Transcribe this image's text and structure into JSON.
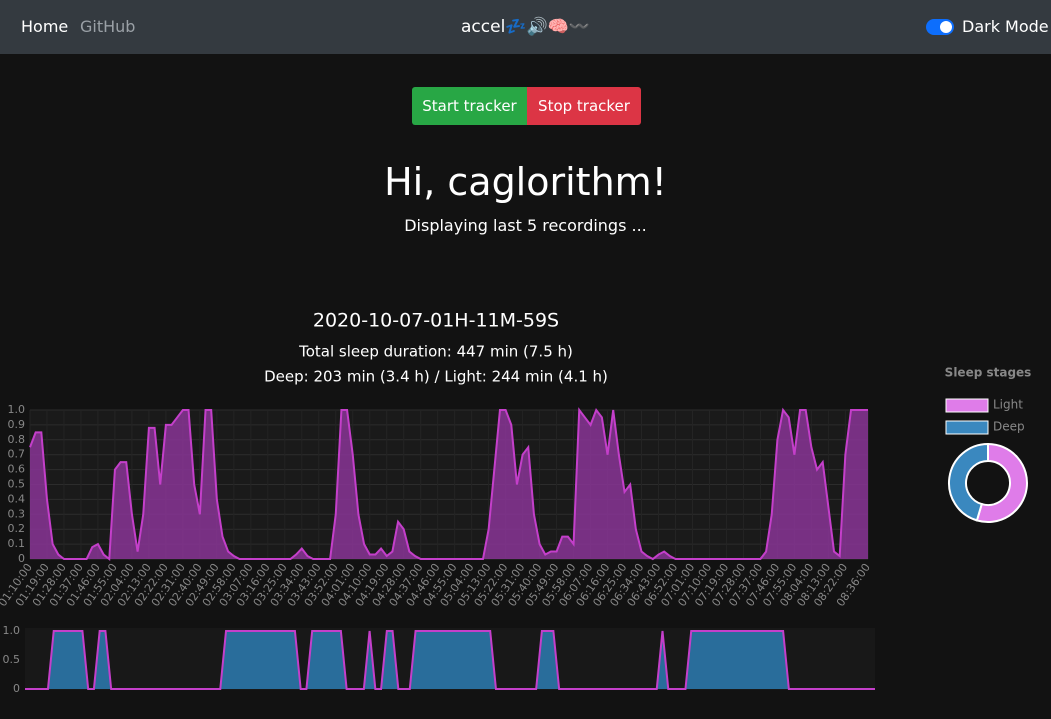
{
  "nav": {
    "links": [
      "Home",
      "GitHub"
    ],
    "brand": "accel💤🔊🧠〰️",
    "toggle": "Dark Mode"
  },
  "buttons": [
    "Start tracker",
    "Stop tracker"
  ],
  "greeting": "Hi, caglorithm!",
  "subtitle": "Displaying last 5 recordings ...",
  "chart_data": [
    {
      "type": "area",
      "title": "2020-10-07-01H-11M-59S",
      "subtitle": [
        "Total sleep duration: 447 min (7.5 h)",
        "Deep: 203 min (3.4 h) / Light: 244 min (4.1 h)"
      ],
      "categories": [
        "01:10:00",
        null,
        null,
        "01:19:00",
        null,
        null,
        "01:28:00",
        null,
        null,
        "01:37:00",
        null,
        null,
        "01:46:00",
        null,
        null,
        "01:55:00",
        null,
        null,
        "02:04:00",
        null,
        null,
        "02:13:00",
        null,
        null,
        "02:22:00",
        null,
        null,
        "02:31:00",
        null,
        null,
        "02:40:00",
        null,
        null,
        "02:49:00",
        null,
        null,
        "02:58:00",
        null,
        null,
        "03:07:00",
        null,
        null,
        "03:16:00",
        null,
        null,
        "03:25:00",
        null,
        null,
        "03:34:00",
        null,
        null,
        "03:43:00",
        null,
        null,
        "03:52:00",
        null,
        null,
        "04:01:00",
        null,
        null,
        "04:10:00",
        null,
        null,
        "04:19:00",
        null,
        null,
        "04:28:00",
        null,
        null,
        "04:37:00",
        null,
        null,
        "04:46:00",
        null,
        null,
        "04:55:00",
        null,
        null,
        "05:04:00",
        null,
        null,
        "05:13:00",
        null,
        null,
        "05:22:00",
        null,
        null,
        "05:31:00",
        null,
        null,
        "05:40:00",
        null,
        null,
        "05:49:00",
        null,
        null,
        "05:58:00",
        null,
        null,
        "06:07:00",
        null,
        null,
        "06:16:00",
        null,
        null,
        "06:25:00",
        null,
        null,
        "06:34:00",
        null,
        null,
        "06:43:00",
        null,
        null,
        "06:52:00",
        null,
        null,
        "07:01:00",
        null,
        null,
        "07:10:00",
        null,
        null,
        "07:19:00",
        null,
        null,
        "07:28:00",
        null,
        null,
        "07:37:00",
        null,
        null,
        "07:46:00",
        null,
        null,
        "07:55:00",
        null,
        null,
        "08:04:00",
        null,
        null,
        "08:13:00",
        null,
        null,
        "08:22:00",
        null,
        null,
        null,
        "08:36:00"
      ],
      "values": [
        0.75,
        0.85,
        0.85,
        0.4,
        0.1,
        0.03,
        0,
        0,
        0,
        0,
        0,
        0.08,
        0.1,
        0.03,
        0,
        0.6,
        0.65,
        0.65,
        0.3,
        0.05,
        0.3,
        0.88,
        0.88,
        0.5,
        0.9,
        0.9,
        0.95,
        1,
        1,
        0.5,
        0.3,
        1,
        1,
        0.4,
        0.15,
        0.05,
        0.02,
        0,
        0,
        0,
        0,
        0,
        0,
        0,
        0,
        0,
        0,
        0.03,
        0.07,
        0.02,
        0,
        0,
        0,
        0,
        0.3,
        1,
        1,
        0.7,
        0.3,
        0.1,
        0.03,
        0.03,
        0.07,
        0.02,
        0.05,
        0.25,
        0.2,
        0.05,
        0.02,
        0,
        0,
        0,
        0,
        0,
        0,
        0,
        0,
        0,
        0,
        0,
        0,
        0.2,
        0.6,
        1,
        1,
        0.9,
        0.5,
        0.7,
        0.75,
        0.3,
        0.1,
        0.03,
        0.05,
        0.05,
        0.15,
        0.15,
        0.1,
        1,
        0.95,
        0.9,
        1,
        0.95,
        0.7,
        1,
        0.7,
        0.45,
        0.5,
        0.2,
        0.05,
        0.02,
        0,
        0.03,
        0.05,
        0.02,
        0,
        0,
        0,
        0,
        0,
        0,
        0,
        0,
        0,
        0,
        0,
        0,
        0,
        0,
        0,
        0,
        0.05,
        0.3,
        0.8,
        1,
        0.95,
        0.7,
        1,
        1,
        0.75,
        0.6,
        0.65,
        0.35,
        0.05,
        0.02,
        0.7,
        1,
        1,
        1,
        1
      ],
      "color": "#c43fca",
      "fill_color": "#8a3596",
      "ylim": [
        0,
        1
      ],
      "yticks": [
        0,
        0.1,
        0.2,
        0.3,
        0.4,
        0.5,
        0.6,
        0.7,
        0.8,
        0.9,
        {
          "value": 1,
          "label": "1.0"
        }
      ],
      "grid": true
    },
    {
      "type": "area",
      "values": [
        0,
        0,
        0,
        0,
        0,
        1,
        1,
        1,
        1,
        1,
        1,
        0,
        0,
        1,
        1,
        0,
        0,
        0,
        0,
        0,
        0,
        0,
        0,
        0,
        0,
        0,
        0,
        0,
        0,
        0,
        0,
        0,
        0,
        0,
        0,
        1,
        1,
        1,
        1,
        1,
        1,
        1,
        1,
        1,
        1,
        1,
        1,
        1,
        0,
        0,
        1,
        1,
        1,
        1,
        1,
        1,
        0,
        0,
        0,
        0,
        1,
        0,
        0,
        1,
        1,
        0,
        0,
        0,
        1,
        1,
        1,
        1,
        1,
        1,
        1,
        1,
        1,
        1,
        1,
        1,
        1,
        1,
        0,
        0,
        0,
        0,
        0,
        0,
        0,
        0,
        1,
        1,
        1,
        0,
        0,
        0,
        0,
        0,
        0,
        0,
        0,
        0,
        0,
        0,
        0,
        0,
        0,
        0,
        0,
        0,
        0,
        1,
        0,
        0,
        0,
        0,
        1,
        1,
        1,
        1,
        1,
        1,
        1,
        1,
        1,
        1,
        1,
        1,
        1,
        1,
        1,
        1,
        1,
        0,
        0,
        0,
        0,
        0,
        0,
        0,
        0,
        0,
        0,
        0,
        0,
        0,
        0,
        0,
        0
      ],
      "color": "#c43fca",
      "fill_color": "#2d7db3",
      "ylim": [
        0,
        1
      ],
      "yticks": [
        0,
        0.5,
        {
          "value": 1,
          "label": "1.0"
        }
      ],
      "grid": false
    },
    {
      "type": "doughnut",
      "title": "Sleep stages",
      "categories": [
        "Light",
        "Deep"
      ],
      "values": [
        244,
        203
      ],
      "colors": [
        "#df7ce9",
        "#3a88bf"
      ]
    }
  ]
}
